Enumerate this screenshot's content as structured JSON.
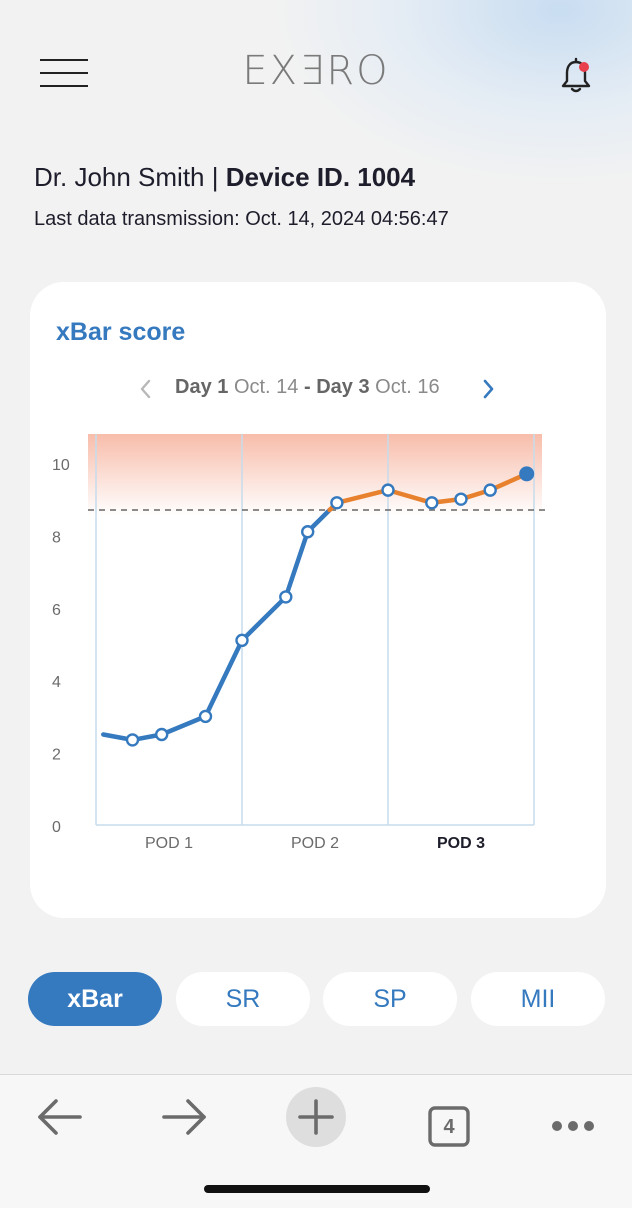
{
  "app": {
    "logo": "EXƎRO"
  },
  "header": {
    "menu_icon": "hamburger-menu-icon",
    "bell_icon": "bell-icon",
    "notification_dot_color": "#e8404c"
  },
  "doctor": {
    "name": "Dr. John Smith",
    "separator": "|",
    "device": "Device ID. 1004"
  },
  "transmission": "Last data transmission: Oct. 14, 2024 04:56:47",
  "card": {
    "title": "xBar score",
    "range": {
      "start_day": "Day 1",
      "start_date": "Oct. 14",
      "dash": "-",
      "end_day": "Day 3",
      "end_date": "Oct. 16"
    }
  },
  "chart_data": {
    "type": "line",
    "y_ticks": [
      "0",
      "2",
      "4",
      "6",
      "8",
      "10"
    ],
    "ylim": [
      0,
      10.8
    ],
    "threshold": 8.7,
    "x_labels": [
      "POD 1",
      "POD 2",
      "POD 3"
    ],
    "active_x_label": "POD 3",
    "grid": "vertical",
    "colors": {
      "below": "#3579bf",
      "above": "#e8812d",
      "danger_zone": "#f7b9a6"
    },
    "points": [
      {
        "x": 0.1,
        "y": 2.5
      },
      {
        "x": 0.5,
        "y": 2.35
      },
      {
        "x": 0.9,
        "y": 2.5
      },
      {
        "x": 1.5,
        "y": 3.0
      },
      {
        "x": 2.0,
        "y": 5.1
      },
      {
        "x": 2.6,
        "y": 6.3
      },
      {
        "x": 2.9,
        "y": 8.1
      },
      {
        "x": 3.3,
        "y": 8.9
      },
      {
        "x": 4.0,
        "y": 9.25
      },
      {
        "x": 4.6,
        "y": 8.9
      },
      {
        "x": 5.0,
        "y": 9.0
      },
      {
        "x": 5.4,
        "y": 9.25
      },
      {
        "x": 5.9,
        "y": 9.7
      }
    ],
    "x_range": [
      0,
      6
    ]
  },
  "tabs": [
    {
      "label": "xBar",
      "active": true
    },
    {
      "label": "SR",
      "active": false
    },
    {
      "label": "SP",
      "active": false
    },
    {
      "label": "MII",
      "active": false
    }
  ],
  "toolbar": {
    "back_icon": "arrow-left-icon",
    "forward_icon": "arrow-right-icon",
    "new_tab_icon": "plus-icon",
    "tab_count": "4",
    "more_icon": "more-dots-icon"
  }
}
